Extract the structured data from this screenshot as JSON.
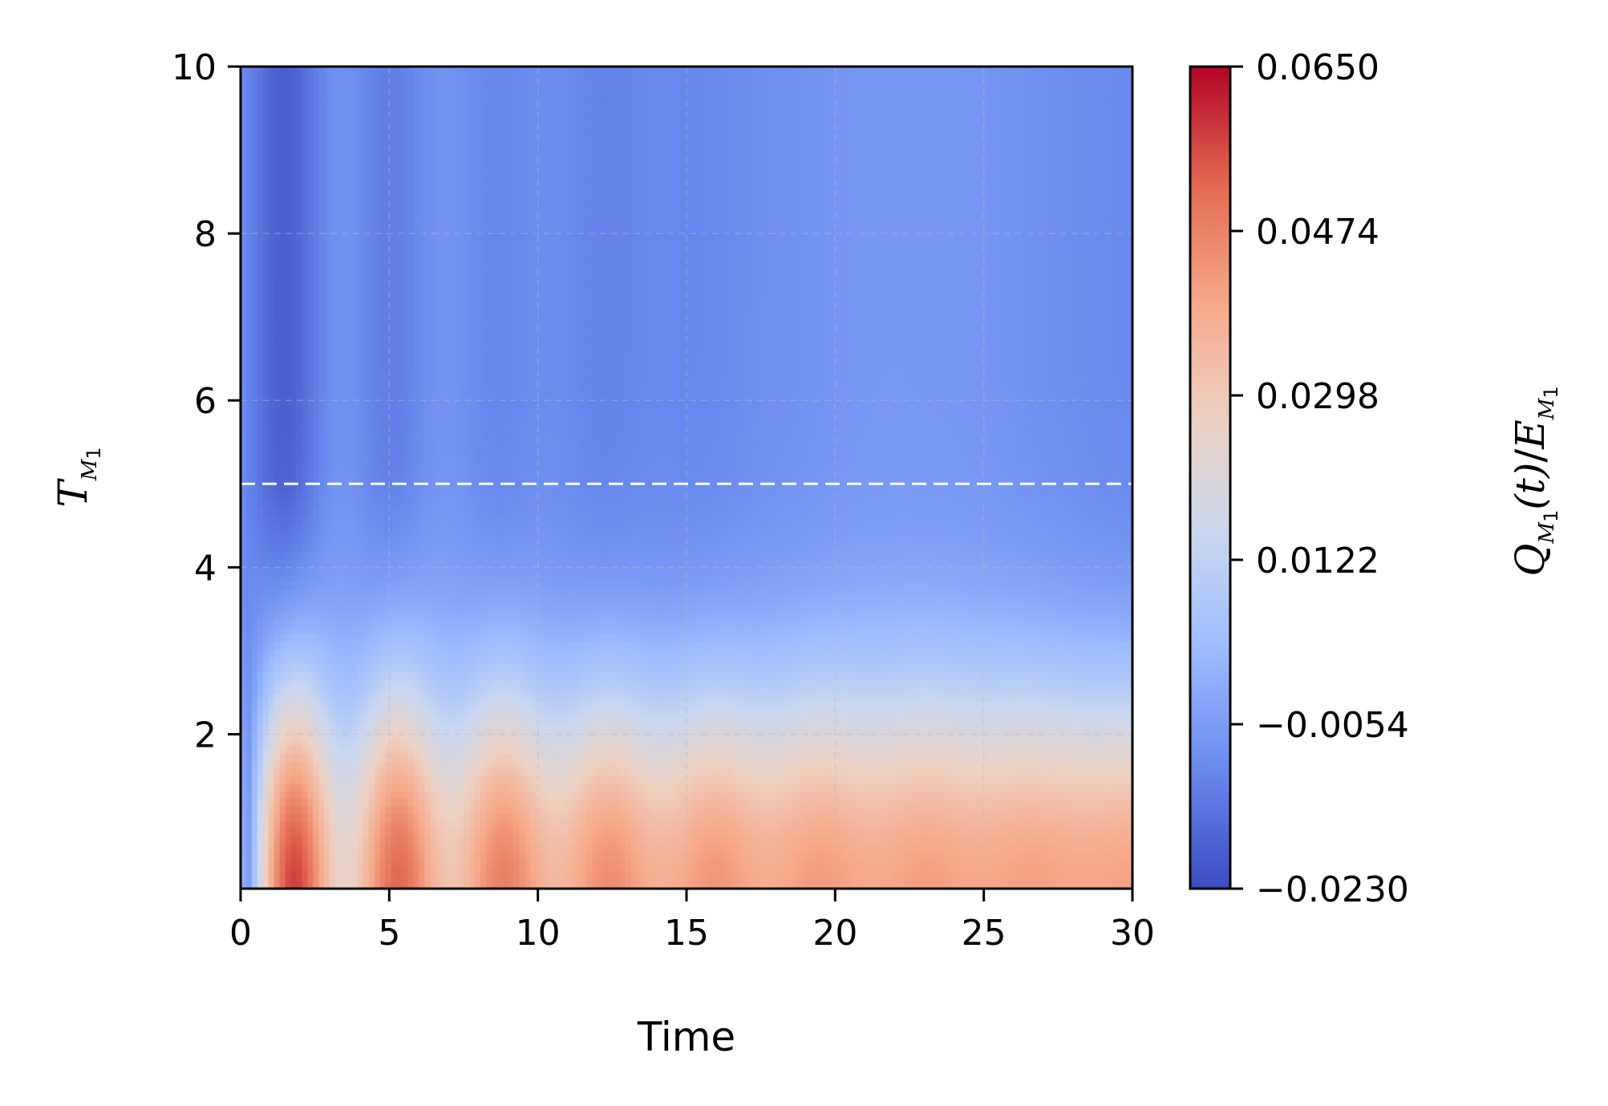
{
  "chart_data": {
    "type": "heatmap",
    "xlabel": "Time",
    "ylabel": {
      "symbol": "T",
      "sub_symbol": "M",
      "sub_index": "1"
    },
    "colorbar_label": {
      "q_symbol": "Q",
      "sub_symbol": "M",
      "sub_index": "1",
      "argument": "(t)",
      "slash": "/",
      "e_symbol": "E"
    },
    "xlim": [
      0,
      30
    ],
    "ylim": [
      0.15,
      10
    ],
    "x_ticks": [
      "0",
      "5",
      "10",
      "15",
      "20",
      "25",
      "30"
    ],
    "y_ticks": [
      "2",
      "4",
      "6",
      "8",
      "10"
    ],
    "x_tick_values": [
      0,
      5,
      10,
      15,
      20,
      25,
      30
    ],
    "y_tick_values": [
      2,
      4,
      6,
      8,
      10
    ],
    "colorbar_range": [
      -0.023,
      0.065
    ],
    "colorbar_ticks": [
      "−0.0230",
      "−0.0054",
      "0.0122",
      "0.0298",
      "0.0474",
      "0.0650"
    ],
    "colorbar_tick_values": [
      -0.023,
      -0.0054,
      0.0122,
      0.0298,
      0.0474,
      0.065
    ],
    "colormap": [
      "#3b4cc0",
      "#6788ee",
      "#9abbff",
      "#c9d7f0",
      "#edd1c2",
      "#f7a889",
      "#e26952",
      "#b40426"
    ],
    "reference_line": {
      "y": 5,
      "style": "dashed",
      "color": "#ffffff"
    },
    "grid": true,
    "field_summary": {
      "oscillation_period": 3.55,
      "first_peak_time": 1.8,
      "peak_value_at_low_T": 0.065,
      "late_time_value_at_low_T": 0.041,
      "high_T_trough_value": -0.023,
      "high_T_asymptote": -0.0085
    }
  }
}
